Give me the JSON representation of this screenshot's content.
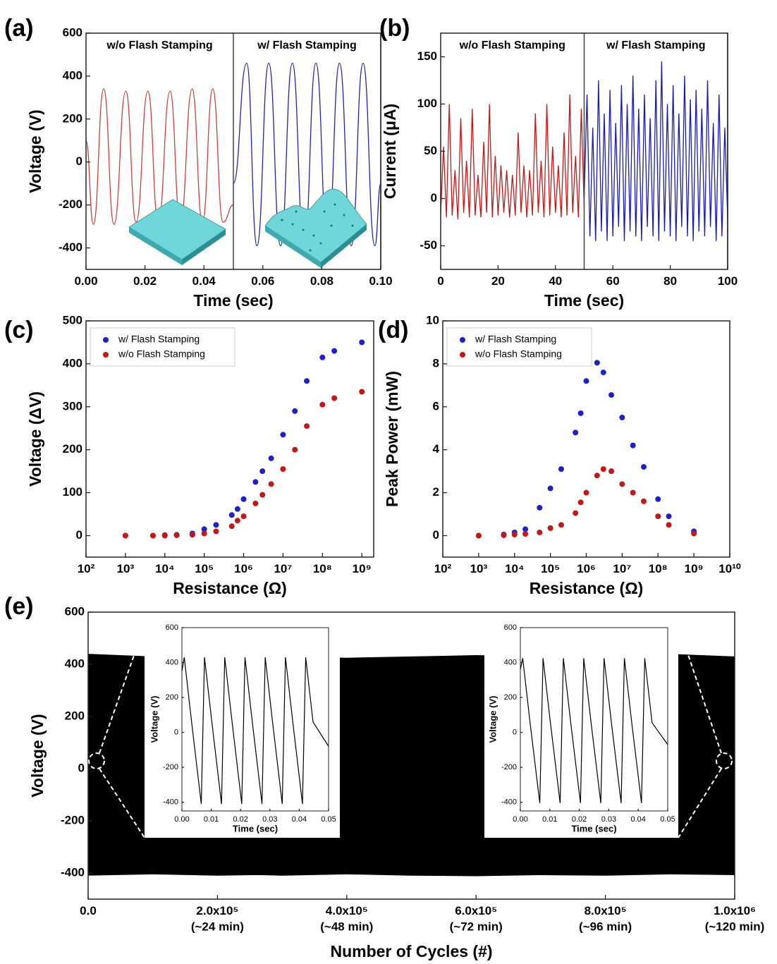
{
  "chart_data": [
    {
      "type": "line",
      "panel": "(a)",
      "xlabel": "Time (sec)",
      "ylabel": "Voltage (V)",
      "smooth": true,
      "xlim": [
        0,
        0.1
      ],
      "ylim": [
        -500,
        600
      ],
      "xticks": [
        {
          "value": 0,
          "label": "0.00"
        },
        {
          "value": 0.02,
          "label": "0.02"
        },
        {
          "value": 0.04,
          "label": "0.04"
        },
        {
          "value": 0.06,
          "label": "0.06"
        },
        {
          "value": 0.08,
          "label": "0.08"
        },
        {
          "value": 0.1,
          "label": "0.10"
        }
      ],
      "yticks": [
        -400,
        -200,
        0,
        200,
        400,
        600
      ],
      "annotations": [
        "w/o Flash Stamping",
        "w/ Flash Stamping"
      ],
      "series": [
        {
          "color": "#c8413a",
          "x": [
            0,
            0.0025,
            0.006,
            0.0095,
            0.0135,
            0.017,
            0.021,
            0.0245,
            0.0285,
            0.032,
            0.036,
            0.0395,
            0.043,
            0.0465,
            0.05
          ],
          "values": [
            100,
            -290,
            340,
            -290,
            330,
            -280,
            330,
            -280,
            330,
            -280,
            340,
            -280,
            340,
            -280,
            -200
          ]
        },
        {
          "color": "#2323a8",
          "x": [
            0.05,
            0.0545,
            0.058,
            0.062,
            0.066,
            0.07,
            0.074,
            0.078,
            0.082,
            0.086,
            0.09,
            0.094,
            0.098,
            0.1
          ],
          "values": [
            -100,
            460,
            -390,
            460,
            -390,
            460,
            -390,
            460,
            -390,
            460,
            -390,
            460,
            -390,
            -100
          ]
        }
      ]
    },
    {
      "type": "line",
      "panel": "(b)",
      "xlabel": "Time (sec)",
      "ylabel": "Current (μA)",
      "xlim": [
        0,
        100
      ],
      "ylim": [
        -75,
        175
      ],
      "xticks": [
        0,
        20,
        40,
        60,
        80,
        100
      ],
      "yticks": [
        -50,
        0,
        50,
        100,
        150
      ],
      "annotations": [
        "w/o Flash Stamping",
        "w/ Flash Stamping"
      ],
      "series": [
        {
          "color": "#c01818",
          "x": [
            0,
            1,
            2,
            3,
            4,
            5,
            6,
            7,
            8,
            9,
            10,
            11,
            12,
            13,
            14,
            15,
            16,
            17,
            18,
            19,
            20,
            21,
            22,
            23,
            24,
            25,
            26,
            27,
            28,
            29,
            30,
            31,
            32,
            33,
            34,
            35,
            36,
            37,
            38,
            39,
            40,
            41,
            42,
            43,
            44,
            45,
            46,
            47,
            48,
            49,
            50
          ],
          "values": [
            -15,
            55,
            -20,
            100,
            -18,
            30,
            -22,
            85,
            -15,
            40,
            -20,
            95,
            -18,
            25,
            -20,
            60,
            -15,
            100,
            -20,
            45,
            -18,
            35,
            -15,
            30,
            -20,
            25,
            -18,
            70,
            -15,
            35,
            -20,
            30,
            -18,
            90,
            -15,
            40,
            -20,
            100,
            -18,
            55,
            -15,
            35,
            -20,
            70,
            -18,
            110,
            -15,
            45,
            -20,
            95,
            -10
          ]
        },
        {
          "color": "#1a1ab0",
          "x": [
            50,
            51,
            52,
            53,
            54,
            55,
            56,
            57,
            58,
            59,
            60,
            61,
            62,
            63,
            64,
            65,
            66,
            67,
            68,
            69,
            70,
            71,
            72,
            73,
            74,
            75,
            76,
            77,
            78,
            79,
            80,
            81,
            82,
            83,
            84,
            85,
            86,
            87,
            88,
            89,
            90,
            91,
            92,
            93,
            94,
            95,
            96,
            97,
            98,
            99,
            100
          ],
          "values": [
            0,
            110,
            -40,
            75,
            -45,
            125,
            -35,
            90,
            -45,
            115,
            -40,
            80,
            -30,
            120,
            -45,
            100,
            -35,
            130,
            -40,
            95,
            -45,
            110,
            -30,
            85,
            -40,
            125,
            -45,
            145,
            -35,
            100,
            -40,
            120,
            -45,
            90,
            -30,
            130,
            -40,
            105,
            -45,
            115,
            -35,
            95,
            -40,
            125,
            -30,
            80,
            -45,
            110,
            -40,
            75,
            -20
          ]
        }
      ]
    },
    {
      "type": "scatter",
      "panel": "(c)",
      "xlabel": "Resistance (Ω)",
      "ylabel": "Voltage (ΔV)",
      "xscale": "log",
      "legend": "upper left",
      "xlim": [
        100,
        2000000000
      ],
      "ylim": [
        -50,
        500
      ],
      "xticks": [
        {
          "value": 100,
          "label": "10²"
        },
        {
          "value": 1000,
          "label": "10³"
        },
        {
          "value": 10000,
          "label": "10⁴"
        },
        {
          "value": 100000,
          "label": "10⁵"
        },
        {
          "value": 1000000,
          "label": "10⁶"
        },
        {
          "value": 10000000,
          "label": "10⁷"
        },
        {
          "value": 100000000,
          "label": "10⁸"
        },
        {
          "value": 1000000000,
          "label": "10⁹"
        }
      ],
      "yticks": [
        0,
        100,
        200,
        300,
        400,
        500
      ],
      "x": [
        1000,
        5000,
        10000,
        20000,
        50000,
        100000,
        200000,
        500000,
        700000,
        1000000,
        2000000,
        3000000,
        5000000,
        10000000,
        20000000,
        40000000,
        100000000,
        200000000,
        1000000000
      ],
      "series": [
        {
          "name": "w/ Flash Stamping",
          "color": "#2020c8",
          "values": [
            0,
            0,
            1,
            2,
            5,
            15,
            25,
            48,
            62,
            85,
            125,
            150,
            180,
            235,
            290,
            360,
            415,
            430,
            450
          ]
        },
        {
          "name": "w/o Flash Stamping",
          "color": "#c41818",
          "values": [
            0,
            0,
            0,
            1,
            2,
            5,
            10,
            22,
            35,
            45,
            75,
            95,
            120,
            155,
            200,
            255,
            305,
            320,
            335
          ]
        }
      ]
    },
    {
      "type": "scatter",
      "panel": "(d)",
      "xlabel": "Resistance (Ω)",
      "ylabel": "Peak Power (mW)",
      "xscale": "log",
      "legend": "upper left",
      "xlim": [
        100,
        10000000000
      ],
      "ylim": [
        -1,
        10
      ],
      "xticks": [
        {
          "value": 100,
          "label": "10²"
        },
        {
          "value": 1000,
          "label": "10³"
        },
        {
          "value": 10000,
          "label": "10⁴"
        },
        {
          "value": 100000,
          "label": "10⁵"
        },
        {
          "value": 1000000,
          "label": "10⁶"
        },
        {
          "value": 10000000,
          "label": "10⁷"
        },
        {
          "value": 100000000,
          "label": "10⁸"
        },
        {
          "value": 1000000000,
          "label": "10⁹"
        },
        {
          "value": 10000000000,
          "label": "10¹⁰"
        }
      ],
      "yticks": [
        0,
        2,
        4,
        6,
        8,
        10
      ],
      "x": [
        1000,
        5000,
        10000,
        20000,
        50000,
        100000,
        200000,
        500000,
        700000,
        1000000,
        2000000,
        3000000,
        5000000,
        10000000,
        20000000,
        40000000,
        100000000,
        200000000,
        1000000000
      ],
      "series": [
        {
          "name": "w/ Flash Stamping",
          "color": "#2020c8",
          "values": [
            0,
            0.05,
            0.15,
            0.3,
            1.3,
            2.2,
            3.1,
            4.8,
            5.7,
            7.2,
            8.05,
            7.6,
            6.55,
            5.5,
            4.2,
            3.2,
            1.7,
            0.9,
            0.2
          ]
        },
        {
          "name": "w/o Flash Stamping",
          "color": "#c41818",
          "values": [
            0,
            0.02,
            0.05,
            0.08,
            0.15,
            0.35,
            0.5,
            1.05,
            1.55,
            2.0,
            2.8,
            3.1,
            3.0,
            2.4,
            2.0,
            1.6,
            0.9,
            0.5,
            0.1
          ]
        }
      ]
    },
    {
      "type": "band",
      "panel": "(e)",
      "xlabel": "Number of Cycles (#)",
      "ylabel": "Voltage (V)",
      "color": "#000000",
      "xlim": [
        0,
        1000000
      ],
      "ylim": [
        -500,
        600
      ],
      "xticks": [
        {
          "value": 0,
          "label": "0.0"
        },
        {
          "value": 200000,
          "label": "2.0x10⁵"
        },
        {
          "value": 400000,
          "label": "4.0x10⁵"
        },
        {
          "value": 600000,
          "label": "6.0x10⁵"
        },
        {
          "value": 800000,
          "label": "8.0x10⁵"
        },
        {
          "value": 1000000,
          "label": "1.0x10⁶"
        }
      ],
      "x_tick_notes": [
        null,
        "(~24 min)",
        "(~48 min)",
        "(~72 min)",
        "(~96 min)",
        "(~120 min)"
      ],
      "yticks": [
        -400,
        -200,
        0,
        200,
        400,
        600
      ],
      "x": [
        0,
        100000,
        200000,
        255000,
        260000,
        265000,
        300000,
        400000,
        500000,
        600000,
        700000,
        800000,
        900000,
        1000000
      ],
      "upper": [
        440,
        430,
        430,
        430,
        460,
        430,
        430,
        425,
        430,
        435,
        430,
        435,
        440,
        430
      ],
      "lower": [
        -410,
        -405,
        -410,
        -408,
        -408,
        -408,
        -410,
        -405,
        -410,
        -412,
        -408,
        -410,
        -405,
        -408
      ]
    },
    {
      "type": "line",
      "xlabel": "Time (sec)",
      "ylabel": "Voltage (V)",
      "xlim": [
        0,
        0.05
      ],
      "ylim": [
        -450,
        600
      ],
      "xticks": [
        {
          "value": 0,
          "label": "0.00"
        },
        {
          "value": 0.01,
          "label": "0.01"
        },
        {
          "value": 0.02,
          "label": "0.02"
        },
        {
          "value": 0.03,
          "label": "0.03"
        },
        {
          "value": 0.04,
          "label": "0.04"
        },
        {
          "value": 0.05,
          "label": "0.05"
        }
      ],
      "yticks": [
        -400,
        -200,
        0,
        200,
        400,
        600
      ],
      "series": [
        {
          "color": "#000000",
          "x": [
            0,
            0.0008,
            0.0033,
            0.0066,
            0.0077,
            0.0102,
            0.0135,
            0.0146,
            0.0171,
            0.0204,
            0.0215,
            0.024,
            0.0273,
            0.0284,
            0.0309,
            0.0342,
            0.0353,
            0.0378,
            0.0411,
            0.0422,
            0.0447,
            0.05
          ],
          "values": [
            350,
            430,
            60,
            -410,
            430,
            60,
            -410,
            430,
            60,
            -410,
            430,
            60,
            -410,
            430,
            60,
            -410,
            430,
            60,
            -410,
            430,
            60,
            -80
          ]
        }
      ]
    },
    {
      "type": "line",
      "xlabel": "Time (sec)",
      "ylabel": "Voltage (V)",
      "xlim": [
        0,
        0.05
      ],
      "ylim": [
        -450,
        600
      ],
      "xticks": [
        {
          "value": 0,
          "label": "0.00"
        },
        {
          "value": 0.01,
          "label": "0.01"
        },
        {
          "value": 0.02,
          "label": "0.02"
        },
        {
          "value": 0.03,
          "label": "0.03"
        },
        {
          "value": 0.04,
          "label": "0.04"
        },
        {
          "value": 0.05,
          "label": "0.05"
        }
      ],
      "yticks": [
        -400,
        -200,
        0,
        200,
        400,
        600
      ],
      "series": [
        {
          "color": "#000000",
          "x": [
            0,
            0.0008,
            0.0033,
            0.0066,
            0.0077,
            0.0102,
            0.0135,
            0.0146,
            0.0171,
            0.0204,
            0.0215,
            0.024,
            0.0273,
            0.0284,
            0.0309,
            0.0342,
            0.0353,
            0.0378,
            0.0411,
            0.0422,
            0.0447,
            0.05
          ],
          "values": [
            360,
            425,
            55,
            -405,
            425,
            55,
            -405,
            425,
            55,
            -405,
            425,
            55,
            -405,
            425,
            55,
            -405,
            425,
            55,
            -405,
            425,
            55,
            -70
          ]
        }
      ]
    }
  ]
}
